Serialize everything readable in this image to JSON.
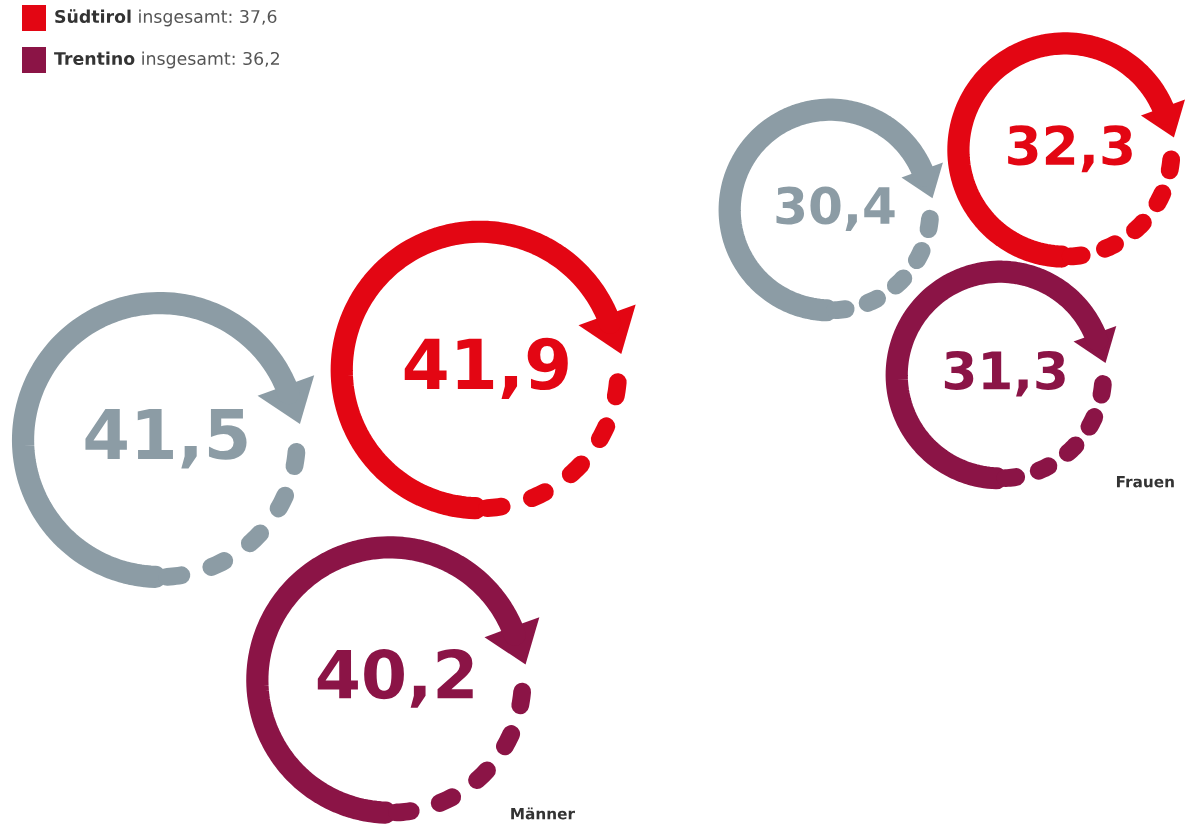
{
  "chart_data": {
    "type": "other",
    "categories": [
      "Männer",
      "Frauen"
    ],
    "series": [
      {
        "name": null,
        "color": "#8c9ca5",
        "values": [
          41.5,
          30.4
        ],
        "value_labels": [
          "41,5",
          "30,4"
        ]
      },
      {
        "name": "Südtirol",
        "color": "#e30613",
        "values": [
          41.9,
          32.3
        ],
        "value_labels": [
          "41,9",
          "32,3"
        ]
      },
      {
        "name": "Trentino",
        "color": "#8b1446",
        "values": [
          40.2,
          31.3
        ],
        "value_labels": [
          "40,2",
          "31,3"
        ]
      }
    ],
    "annotations": [
      null,
      "insgesamt: 37,6",
      "insgesamt: 36,2"
    ],
    "legend": "top left"
  }
}
